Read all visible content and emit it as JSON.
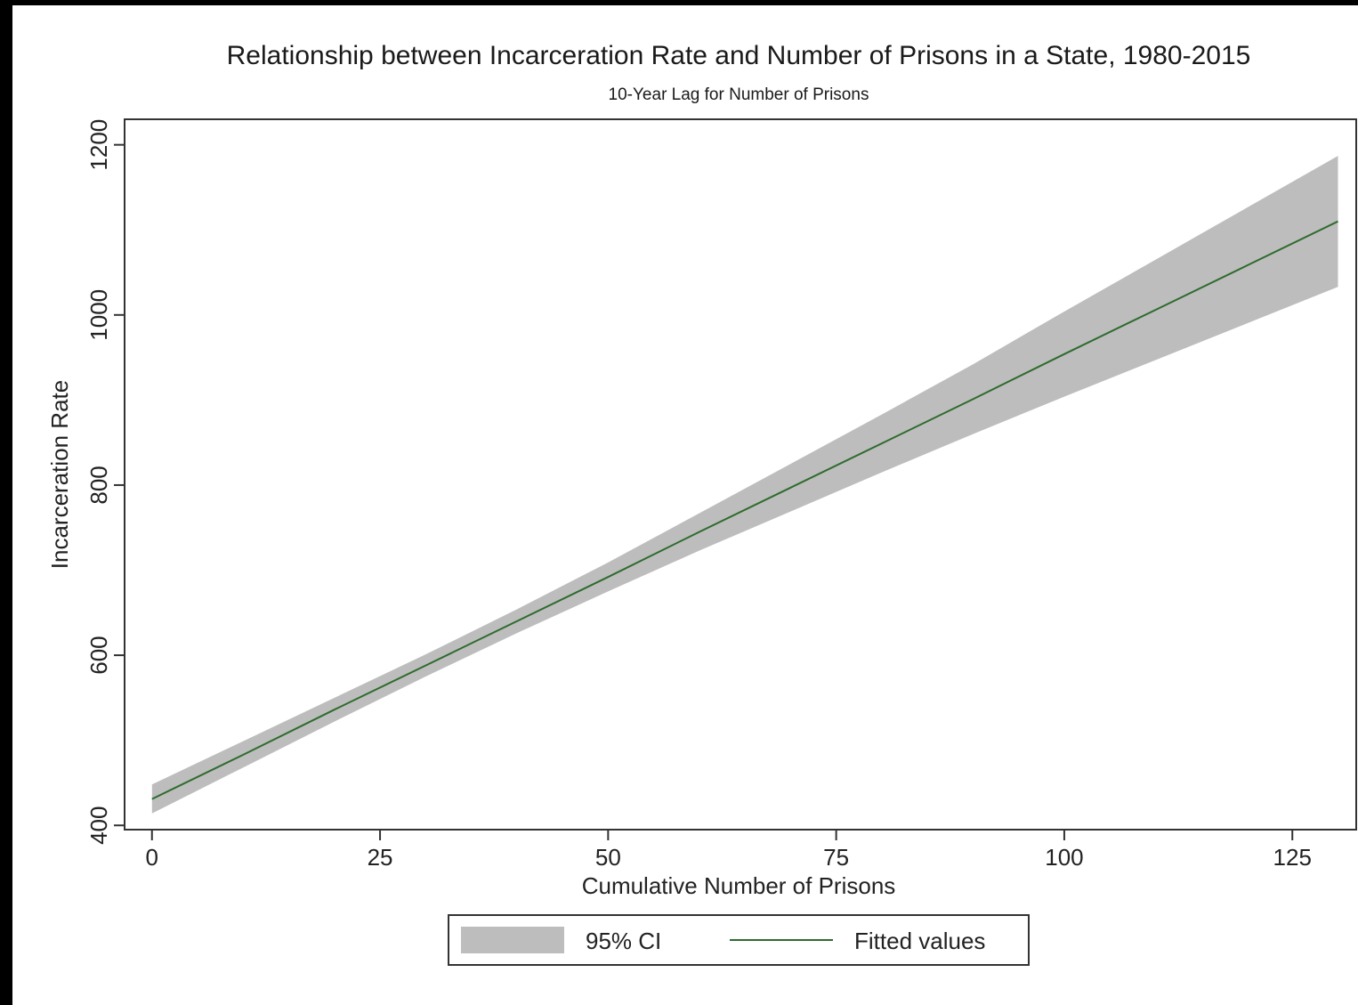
{
  "chart_data": {
    "type": "line",
    "title": "Relationship between Incarceration Rate and Number of Prisons in a State, 1980-2015",
    "subtitle": "10-Year Lag for Number of Prisons",
    "xlabel": "Cumulative Number of Prisons",
    "ylabel": "Incarceration Rate",
    "xlim": [
      -3,
      132
    ],
    "ylim": [
      395,
      1230
    ],
    "x_ticks": [
      0,
      25,
      50,
      75,
      100,
      125
    ],
    "y_ticks": [
      400,
      600,
      800,
      1000,
      1200
    ],
    "grid": false,
    "legend_position": "bottom",
    "colors": {
      "fitted_line": "#2e6b2e",
      "ci_band": "#bdbdbd"
    },
    "series": [
      {
        "name": "Fitted values",
        "kind": "line",
        "x": [
          0,
          10,
          20,
          30,
          40,
          50,
          60,
          70,
          80,
          90,
          100,
          110,
          120,
          130
        ],
        "y": [
          431,
          483,
          536,
          588,
          640,
          692,
          745,
          797,
          849,
          901,
          954,
          1006,
          1058,
          1110
        ]
      },
      {
        "name": "95% CI",
        "kind": "band",
        "x": [
          0,
          10,
          20,
          30,
          40,
          50,
          60,
          70,
          80,
          90,
          100,
          110,
          120,
          130
        ],
        "lower": [
          414,
          468,
          522,
          575,
          626,
          675,
          723,
          769,
          815,
          860,
          904,
          947,
          990,
          1033
        ],
        "upper": [
          448,
          499,
          550,
          601,
          654,
          709,
          767,
          825,
          883,
          942,
          1004,
          1065,
          1126,
          1187
        ]
      }
    ]
  }
}
